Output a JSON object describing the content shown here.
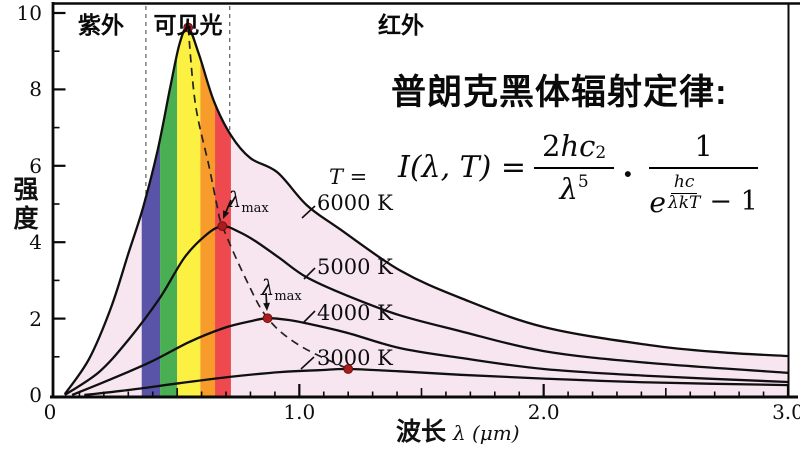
{
  "header": {
    "title": "普朗克黑体辐射定律:"
  },
  "formula": {
    "lhs": "I(λ, T) =",
    "f1_num_coeff": "2",
    "f1_num_var": "hc",
    "f1_num_exp": "2",
    "f1_den_var": "λ",
    "f1_den_exp": "5",
    "dot": "·",
    "f2_num": "1",
    "f2_e": "e",
    "f2_exp_num": "hc",
    "f2_exp_den": "λkT",
    "f2_tail": "− 1"
  },
  "chart_data": {
    "type": "line",
    "title": "普朗克黑体辐射定律:",
    "ylabel": "强度",
    "xlabel_cn": "波长",
    "xlabel_unit": "λ (μm)",
    "xlim": [
      0,
      3.0
    ],
    "ylim": [
      0,
      10.3
    ],
    "x_ticks": [
      {
        "v": 0,
        "label": "0"
      },
      {
        "v": 1.0,
        "label": "1.0"
      },
      {
        "v": 2.0,
        "label": "2.0"
      },
      {
        "v": 3.0,
        "label": "3.0"
      }
    ],
    "y_ticks": [
      {
        "v": 0,
        "label": "0"
      },
      {
        "v": 2,
        "label": "2"
      },
      {
        "v": 4,
        "label": "4"
      },
      {
        "v": 6,
        "label": "6"
      },
      {
        "v": 8,
        "label": "8"
      },
      {
        "v": 10,
        "label": "10"
      }
    ],
    "x_minor_step_um": 0.1,
    "y_minor_step": 1,
    "regions": [
      {
        "label": "紫外",
        "from_um": 0.0,
        "to_um": 0.372
      },
      {
        "label": "可见光",
        "from_um": 0.372,
        "to_um": 0.715
      },
      {
        "label": "红外",
        "from_um": 0.715,
        "to_um": 3.0
      }
    ],
    "fill_color": "#f7e6ef",
    "spectrum_stripes": [
      {
        "color": "#5a54a8",
        "from_um": 0.355,
        "to_um": 0.43
      },
      {
        "color": "#4aaf52",
        "from_um": 0.43,
        "to_um": 0.5
      },
      {
        "color": "#fcf143",
        "from_um": 0.5,
        "to_um": 0.595
      },
      {
        "color": "#f79b2a",
        "from_um": 0.595,
        "to_um": 0.655
      },
      {
        "color": "#ee494f",
        "from_um": 0.655,
        "to_um": 0.72
      }
    ],
    "t_label": "T =",
    "lambda_max": {
      "base": "λ",
      "sub": "max"
    },
    "series": [
      {
        "name": "6000 K",
        "peak_um": 0.545,
        "peak_intensity": 9.62,
        "points": [
          [
            0.04,
            0.02
          ],
          [
            0.14,
            0.95
          ],
          [
            0.23,
            2.3
          ],
          [
            0.3,
            3.7
          ],
          [
            0.36,
            4.9
          ],
          [
            0.42,
            6.4
          ],
          [
            0.47,
            8.0
          ],
          [
            0.51,
            9.2
          ],
          [
            0.545,
            9.62
          ],
          [
            0.59,
            8.9
          ],
          [
            0.65,
            7.7
          ],
          [
            0.72,
            6.8
          ],
          [
            0.8,
            6.2
          ],
          [
            0.91,
            5.83
          ],
          [
            1.03,
            4.97
          ],
          [
            1.16,
            4.37
          ],
          [
            1.41,
            3.27
          ],
          [
            1.66,
            2.54
          ],
          [
            2.0,
            1.78
          ],
          [
            2.43,
            1.31
          ],
          [
            2.72,
            1.12
          ],
          [
            3.0,
            1.02
          ]
        ]
      },
      {
        "name": "5000 K",
        "peak_um": 0.685,
        "peak_intensity": 4.42,
        "points": [
          [
            0.04,
            0
          ],
          [
            0.18,
            0.6
          ],
          [
            0.3,
            1.44
          ],
          [
            0.43,
            2.55
          ],
          [
            0.53,
            3.6
          ],
          [
            0.62,
            4.2
          ],
          [
            0.685,
            4.42
          ],
          [
            0.75,
            4.28
          ],
          [
            0.82,
            4.03
          ],
          [
            0.92,
            3.58
          ],
          [
            1.03,
            3.08
          ],
          [
            1.2,
            2.59
          ],
          [
            1.41,
            2.09
          ],
          [
            1.66,
            1.67
          ],
          [
            2.0,
            1.15
          ],
          [
            2.43,
            0.84
          ],
          [
            3.0,
            0.58
          ]
        ]
      },
      {
        "name": "4000 K",
        "peak_um": 0.87,
        "peak_intensity": 2.01,
        "points": [
          [
            0.07,
            0
          ],
          [
            0.22,
            0.39
          ],
          [
            0.39,
            0.86
          ],
          [
            0.55,
            1.39
          ],
          [
            0.69,
            1.75
          ],
          [
            0.8,
            1.93
          ],
          [
            0.87,
            2.01
          ],
          [
            0.96,
            1.96
          ],
          [
            1.04,
            1.86
          ],
          [
            1.2,
            1.62
          ],
          [
            1.41,
            1.23
          ],
          [
            1.66,
            0.97
          ],
          [
            2.0,
            0.68
          ],
          [
            2.43,
            0.5
          ],
          [
            3.0,
            0.34
          ]
        ]
      },
      {
        "name": "3000 K",
        "peak_um": 1.2,
        "peak_intensity": 0.68,
        "points": [
          [
            0.12,
            0
          ],
          [
            0.3,
            0.13
          ],
          [
            0.51,
            0.31
          ],
          [
            0.71,
            0.47
          ],
          [
            0.92,
            0.6
          ],
          [
            1.08,
            0.65
          ],
          [
            1.2,
            0.68
          ],
          [
            1.41,
            0.62
          ],
          [
            1.66,
            0.53
          ],
          [
            2.0,
            0.43
          ],
          [
            2.43,
            0.33
          ],
          [
            3.0,
            0.26
          ]
        ]
      }
    ],
    "wien_locus_um": [
      [
        0.545,
        9.62
      ],
      [
        0.575,
        7.6
      ],
      [
        0.63,
        6.0
      ],
      [
        0.665,
        4.9
      ],
      [
        0.685,
        4.42
      ],
      [
        0.78,
        3.05
      ],
      [
        0.87,
        2.01
      ],
      [
        1.0,
        1.3
      ],
      [
        1.2,
        0.68
      ]
    ],
    "peak_dots_um": [
      [
        0.545,
        9.62
      ],
      [
        0.685,
        4.42
      ],
      [
        0.87,
        2.01
      ],
      [
        1.2,
        0.68
      ]
    ],
    "dot_color": "#a81e1e"
  }
}
